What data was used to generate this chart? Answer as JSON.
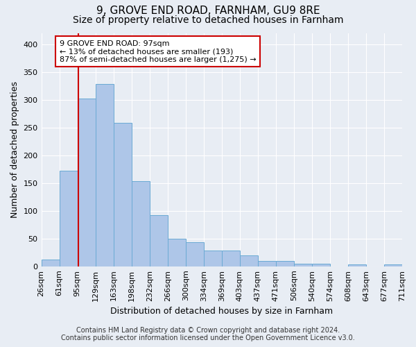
{
  "title1": "9, GROVE END ROAD, FARNHAM, GU9 8RE",
  "title2": "Size of property relative to detached houses in Farnham",
  "xlabel": "Distribution of detached houses by size in Farnham",
  "ylabel": "Number of detached properties",
  "bar_labels": [
    "26sqm",
    "61sqm",
    "95sqm",
    "129sqm",
    "163sqm",
    "198sqm",
    "232sqm",
    "266sqm",
    "300sqm",
    "334sqm",
    "369sqm",
    "403sqm",
    "437sqm",
    "471sqm",
    "506sqm",
    "540sqm",
    "574sqm",
    "608sqm",
    "643sqm",
    "677sqm",
    "711sqm"
  ],
  "bar_heights": [
    12,
    172,
    302,
    328,
    258,
    153,
    92,
    50,
    44,
    28,
    28,
    20,
    10,
    10,
    5,
    5,
    0,
    3,
    0,
    3
  ],
  "bar_color": "#aec6e8",
  "bar_edge_color": "#6aaad4",
  "background_color": "#e8edf4",
  "grid_color": "#ffffff",
  "vline_color": "#cc0000",
  "annotation_line1": "9 GROVE END ROAD: 97sqm",
  "annotation_line2": "← 13% of detached houses are smaller (193)",
  "annotation_line3": "87% of semi-detached houses are larger (1,275) →",
  "annotation_box_color": "#ffffff",
  "annotation_box_edge_color": "#cc0000",
  "footnote1": "Contains HM Land Registry data © Crown copyright and database right 2024.",
  "footnote2": "Contains public sector information licensed under the Open Government Licence v3.0.",
  "ylim": [
    0,
    420
  ],
  "yticks": [
    0,
    50,
    100,
    150,
    200,
    250,
    300,
    350,
    400
  ],
  "title1_fontsize": 11,
  "title2_fontsize": 10,
  "label_fontsize": 9,
  "tick_fontsize": 8,
  "annotation_fontsize": 8,
  "footnote_fontsize": 7
}
